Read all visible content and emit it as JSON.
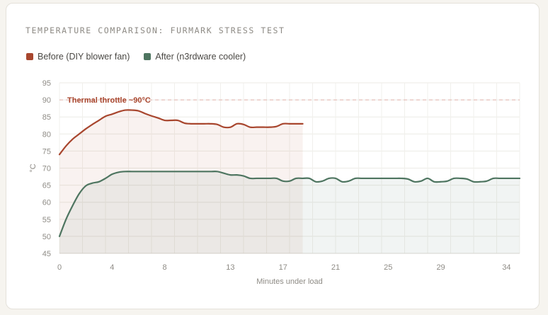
{
  "chart_data": {
    "type": "line",
    "title": "TEMPERATURE COMPARISON: FURMARK STRESS TEST",
    "xlabel": "Minutes under load",
    "ylabel": "°C",
    "xlim": [
      0,
      35
    ],
    "ylim": [
      45,
      95
    ],
    "x_ticks": [
      0,
      4,
      8,
      13,
      17,
      21,
      25,
      29,
      34
    ],
    "y_ticks": [
      45,
      50,
      55,
      60,
      65,
      70,
      75,
      80,
      85,
      90,
      95
    ],
    "grid": true,
    "legend_position": "top-left",
    "threshold": {
      "value": 90,
      "label": "Thermal throttle ~90°C",
      "color": "#e2b0aa"
    },
    "series": [
      {
        "name": "Before (DIY blower fan)",
        "color": "#a8462e",
        "fill": "rgba(168,70,46,0.07)",
        "x": [
          0,
          0.5,
          1,
          1.5,
          2,
          2.5,
          3,
          3.5,
          4,
          4.5,
          5,
          5.5,
          6,
          6.5,
          7,
          7.5,
          8,
          8.5,
          9,
          9.5,
          10,
          10.5,
          11,
          11.5,
          12,
          12.5,
          13,
          13.5,
          14,
          14.5,
          15,
          15.5,
          16,
          16.5,
          17,
          17.5,
          18,
          18.5
        ],
        "y": [
          74,
          76.5,
          78.5,
          80,
          81.5,
          82.8,
          84,
          85.2,
          85.8,
          86.5,
          87,
          87,
          86.8,
          86,
          85.3,
          84.7,
          84,
          84,
          84,
          83.2,
          83,
          83,
          83,
          83,
          82.8,
          82,
          82,
          83,
          82.8,
          82,
          82,
          82,
          82,
          82.2,
          83,
          83,
          83,
          83
        ]
      },
      {
        "name": "After (n3rdware cooler)",
        "color": "#4e7560",
        "fill": "rgba(78,117,96,0.08)",
        "x": [
          0,
          0.5,
          1,
          1.5,
          2,
          2.5,
          3,
          3.5,
          4,
          4.5,
          5,
          5.5,
          6,
          6.5,
          7,
          7.5,
          8,
          8.5,
          9,
          9.5,
          10,
          10.5,
          11,
          11.5,
          12,
          12.5,
          13,
          13.5,
          14,
          14.5,
          15,
          15.5,
          16,
          16.5,
          17,
          17.5,
          18,
          18.5,
          19,
          19.5,
          20,
          20.5,
          21,
          21.5,
          22,
          22.5,
          23,
          23.5,
          24,
          24.5,
          25,
          25.5,
          26,
          26.5,
          27,
          27.5,
          28,
          28.5,
          29,
          29.5,
          30,
          30.5,
          31,
          31.5,
          32,
          32.5,
          33,
          33.5,
          34,
          34.5,
          35
        ],
        "y": [
          50,
          55,
          59,
          62.5,
          64.8,
          65.6,
          66,
          67,
          68.2,
          68.8,
          69,
          69,
          69,
          69,
          69,
          69,
          69,
          69,
          69,
          69,
          69,
          69,
          69,
          69,
          69,
          68.5,
          68,
          68,
          67.7,
          67,
          67,
          67,
          67,
          67,
          66.2,
          66.2,
          67,
          67,
          67,
          66,
          66.2,
          67,
          67,
          66,
          66.2,
          67,
          67,
          67,
          67,
          67,
          67,
          67,
          67,
          66.8,
          66,
          66.2,
          67,
          66,
          66,
          66.2,
          67,
          67,
          66.8,
          66,
          66,
          66.2,
          67,
          67,
          67,
          67,
          67
        ]
      }
    ]
  }
}
